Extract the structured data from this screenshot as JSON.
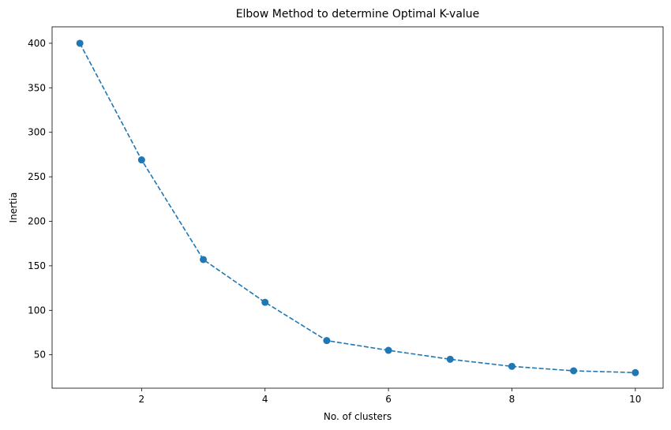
{
  "chart_data": {
    "type": "line",
    "title": "Elbow Method to determine Optimal K-value",
    "xlabel": "No. of clusters",
    "ylabel": "Inertia",
    "x": [
      1,
      2,
      3,
      4,
      5,
      6,
      7,
      8,
      9,
      10
    ],
    "series": [
      {
        "values": [
          400,
          269,
          157,
          109,
          66,
          55,
          45,
          37,
          32,
          30
        ],
        "color": "#1f77b4",
        "line_style": "dashed",
        "marker": "circle"
      }
    ],
    "xlim": [
      0.55,
      10.45
    ],
    "ylim": [
      12.5,
      418.5
    ],
    "xticks": [
      2,
      4,
      6,
      8,
      10
    ],
    "yticks": [
      50,
      100,
      150,
      200,
      250,
      300,
      350,
      400
    ],
    "grid": false,
    "legend": "none"
  }
}
